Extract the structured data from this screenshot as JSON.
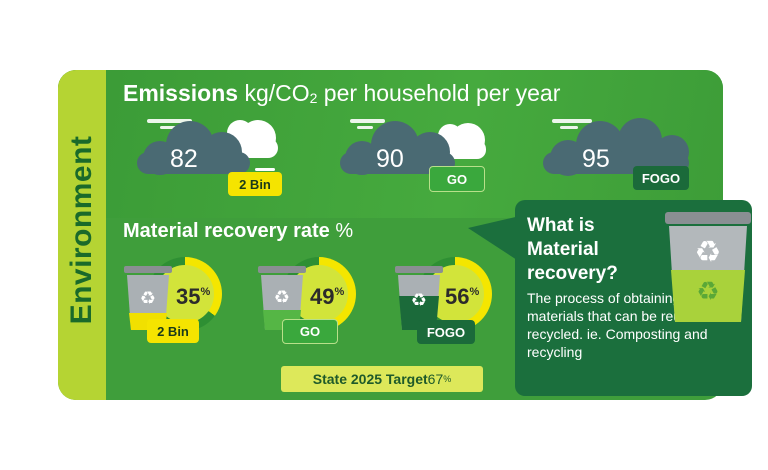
{
  "side_label": "Environment",
  "emissions": {
    "title_bold": "Emissions",
    "title_rest": "kg/CO",
    "title_sub": "2",
    "title_tail": " per household per year",
    "items": [
      {
        "value": "82",
        "tag": "2 Bin"
      },
      {
        "value": "90",
        "tag": "GO"
      },
      {
        "value": "95",
        "tag": "FOGO"
      }
    ]
  },
  "material_recovery": {
    "title_bold": "Material recovery rate",
    "title_rest": " %",
    "items": [
      {
        "value": "35",
        "unit": "%",
        "tag": "2 Bin",
        "fraction": 0.35
      },
      {
        "value": "49",
        "unit": "%",
        "tag": "GO",
        "fraction": 0.49
      },
      {
        "value": "56",
        "unit": "%",
        "tag": "FOGO",
        "fraction": 0.56
      }
    ],
    "target_bold": "State 2025 Target",
    "target_value": " 67",
    "target_unit": "%"
  },
  "info_box": {
    "title": "What is Material recovery?",
    "body": "The process of obtaining materials that can be reused or recycled. ie. Composting and recycling"
  },
  "colors": {
    "green_bg": "#3f9e3b",
    "lime_strip": "#b5d433",
    "dark_green": "#1b6f3d",
    "cloud": "#4a6a73",
    "yellow_tag": "#f5e400",
    "lime_ring": "#d2e43a"
  }
}
